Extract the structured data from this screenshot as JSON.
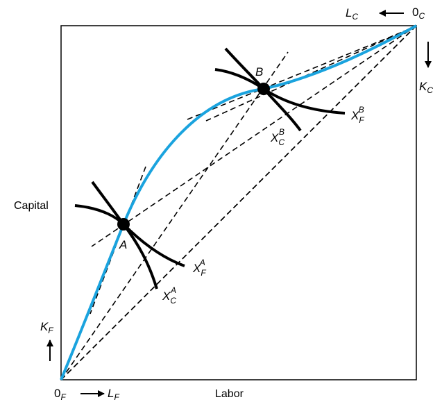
{
  "axes": {
    "x_label": "Labor",
    "y_label": "Capital"
  },
  "origins": {
    "food": {
      "base": "0",
      "sub": "F"
    },
    "cloth": {
      "base": "0",
      "sub": "C"
    }
  },
  "arrow_labels": {
    "lf": {
      "base": "L",
      "sub": "F"
    },
    "kf": {
      "base": "K",
      "sub": "F"
    },
    "lc": {
      "base": "L",
      "sub": "C"
    },
    "kc": {
      "base": "K",
      "sub": "C"
    }
  },
  "points": {
    "a": "A",
    "b": "B"
  },
  "isoquants": {
    "xfa": {
      "base": "X",
      "sub": "F",
      "sup": "A"
    },
    "xca": {
      "base": "X",
      "sub": "C",
      "sup": "A"
    },
    "xfb": {
      "base": "X",
      "sub": "F",
      "sup": "B"
    },
    "xcb": {
      "base": "X",
      "sub": "C",
      "sup": "B"
    }
  },
  "colors": {
    "contract_curve": "#1aa3de",
    "lines": "#000000",
    "background": "#ffffff"
  }
}
